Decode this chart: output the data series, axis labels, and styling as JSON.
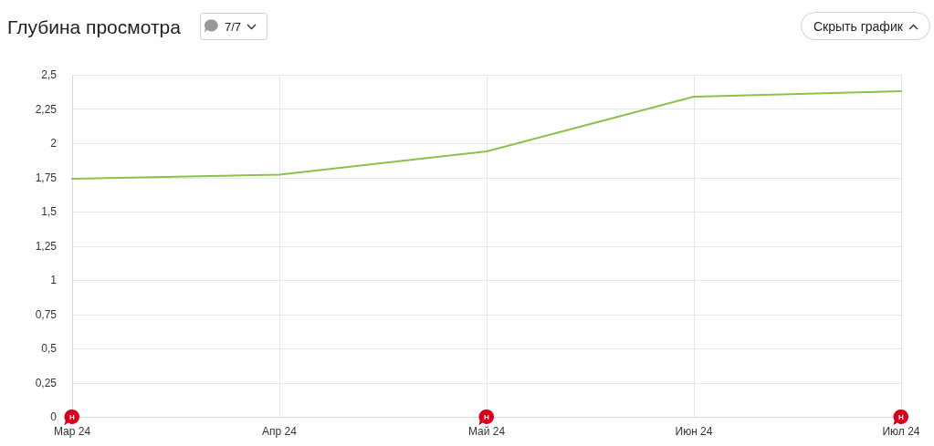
{
  "chart_data": {
    "type": "line",
    "title": "Глубина просмотра",
    "subtitle": "7/7",
    "categories": [
      "Мар 24",
      "Апр 24",
      "Май 24",
      "Июн 24",
      "Июл 24"
    ],
    "series": [
      {
        "color": "#8bc34a",
        "values": [
          1.74,
          1.77,
          1.94,
          2.34,
          2.38
        ]
      }
    ],
    "ylim": [
      0,
      2.5
    ],
    "yticks": [
      0,
      {
        "value": 0.25,
        "label": "0,25"
      },
      {
        "value": 0.5,
        "label": "0,5"
      },
      {
        "value": 0.75,
        "label": "0,75"
      },
      1,
      {
        "value": 1.25,
        "label": "1,25"
      },
      {
        "value": 1.5,
        "label": "1,5"
      },
      {
        "value": 1.75,
        "label": "1,75"
      },
      2,
      {
        "value": 2.25,
        "label": "2,25"
      },
      {
        "value": 2.5,
        "label": "2,5"
      }
    ],
    "grid": true,
    "annotations": [
      "Скрыть график",
      {
        "text": "Н",
        "x": "Мар 24",
        "y": 0
      },
      {
        "text": "Н",
        "x": "Май 24",
        "y": 0
      },
      {
        "text": "Н",
        "x": "Июл 24",
        "y": 0
      }
    ]
  }
}
